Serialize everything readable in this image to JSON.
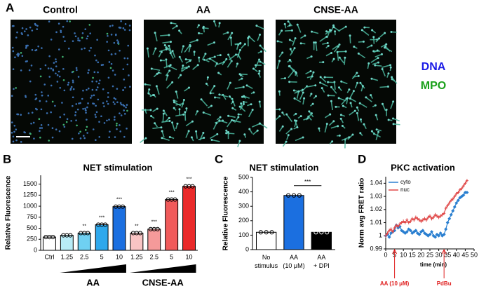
{
  "panel_a": {
    "label": "A",
    "titles": [
      "Control",
      "AA",
      "CNSE-AA"
    ],
    "legend": [
      "DNA",
      "MPO"
    ],
    "legend_colors": [
      "#1a1ae6",
      "#1aa01a"
    ]
  },
  "chart_data": [
    {
      "type": "bar",
      "panel": "B",
      "title": "NET stimulation",
      "ylabel": "Relative Fluorescence",
      "categories": [
        "Ctrl",
        "1.25",
        "2.5",
        "5",
        "10",
        "1.25",
        "2.5",
        "5",
        "10"
      ],
      "values": [
        300,
        340,
        390,
        580,
        990,
        390,
        480,
        1150,
        1450
      ],
      "colors": [
        "#ffffff",
        "#b8ecf7",
        "#6fd0f2",
        "#2ea8ec",
        "#1b6fe0",
        "#f9c4c4",
        "#f59a9a",
        "#f05a5a",
        "#ea2a2a"
      ],
      "significance": [
        null,
        null,
        "**",
        "***",
        "***",
        "**",
        "***",
        "***",
        "***"
      ],
      "group_labels": [
        "AA",
        "CNSE-AA"
      ],
      "ylim": [
        0,
        1700
      ],
      "yticks": [
        0,
        250,
        500,
        750,
        1000,
        1250,
        1500
      ]
    },
    {
      "type": "bar",
      "panel": "C",
      "title": "NET stimulation",
      "ylabel": "Relative Fluorescence",
      "categories": [
        "No stimulus",
        "AA (10 μM)",
        "AA + DPI"
      ],
      "values": [
        120,
        375,
        120
      ],
      "colors": [
        "#ffffff",
        "#1b6fe0",
        "#000000"
      ],
      "significance": [
        null,
        null,
        "***"
      ],
      "ylim": [
        0,
        500
      ],
      "yticks": [
        0,
        100,
        200,
        300,
        400,
        500
      ]
    },
    {
      "type": "line",
      "panel": "D",
      "title": "PKC activation",
      "ylabel": "Norm avg FRET ratio",
      "xlabel": "time (min)",
      "x": [
        0,
        1,
        2,
        3,
        4,
        5,
        6,
        7,
        8,
        9,
        10,
        11,
        12,
        13,
        14,
        15,
        16,
        17,
        18,
        19,
        20,
        21,
        22,
        23,
        24,
        25,
        26,
        27,
        28,
        29,
        30,
        31,
        32,
        33,
        34,
        35,
        36,
        37,
        38,
        39,
        40,
        41,
        42,
        43,
        44,
        45,
        46
      ],
      "series": [
        {
          "name": "cyto",
          "color": "#2a7fd0",
          "values": [
            1.0,
            1.001,
            0.999,
            1.002,
            1.003,
            1.004,
            1.008,
            1.006,
            1.007,
            1.004,
            1.003,
            1.002,
            1.003,
            1.005,
            1.004,
            1.002,
            1.003,
            1.004,
            1.002,
            1.001,
            1.003,
            1.004,
            1.002,
            1.001,
            1.0,
            1.001,
            1.003,
            1.0,
            0.999,
            1.001,
            1.0,
            1.002,
            1.0,
            1.001,
            1.005,
            1.01,
            1.013,
            1.016,
            1.019,
            1.022,
            1.025,
            1.027,
            1.029,
            1.03,
            1.031,
            1.033,
            1.033
          ]
        },
        {
          "name": "nuc",
          "color": "#e04848",
          "values": [
            1.0,
            1.002,
            1.004,
            1.005,
            1.003,
            1.006,
            1.008,
            1.007,
            1.009,
            1.01,
            1.011,
            1.01,
            1.012,
            1.01,
            1.011,
            1.013,
            1.012,
            1.014,
            1.013,
            1.012,
            1.011,
            1.012,
            1.013,
            1.012,
            1.014,
            1.015,
            1.013,
            1.014,
            1.016,
            1.015,
            1.014,
            1.015,
            1.016,
            1.017,
            1.021,
            1.023,
            1.025,
            1.027,
            1.028,
            1.03,
            1.032,
            1.033,
            1.035,
            1.036,
            1.038,
            1.04,
            1.042
          ]
        }
      ],
      "annotations": [
        {
          "text": "AA (10 μM)",
          "x": 5
        },
        {
          "text": "PdBu",
          "x": 33
        }
      ],
      "annotation_color": "#e02020",
      "xlim": [
        0,
        50
      ],
      "xticks": [
        0,
        5,
        10,
        15,
        20,
        25,
        30,
        35,
        40,
        45,
        50
      ],
      "ylim": [
        0.99,
        1.045
      ],
      "yticks": [
        0.99,
        1,
        1.01,
        1.02,
        1.03,
        1.04
      ]
    }
  ]
}
